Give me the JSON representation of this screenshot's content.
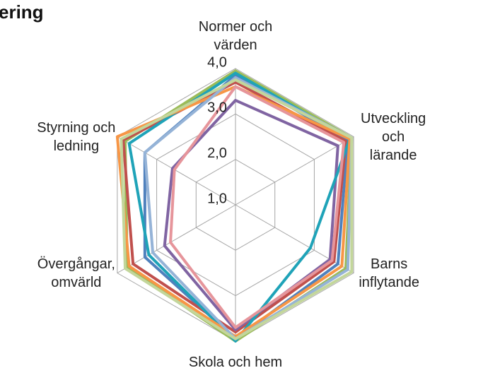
{
  "chart_data": {
    "type": "radar",
    "title": "ering",
    "categories": [
      "Normer och\nvärden",
      "Utveckling och\nlärande",
      "Barns\ninflytande",
      "Skola och hem",
      "Övergångar,\nomvärld",
      "Styrning och\nledning"
    ],
    "ylim": [
      1,
      4
    ],
    "yticks": [
      {
        "value": 1,
        "label": "1,0"
      },
      {
        "value": 2,
        "label": "2,0"
      },
      {
        "value": 3,
        "label": "3,0"
      },
      {
        "value": 4,
        "label": "4,0"
      }
    ],
    "grid": true,
    "series": [
      {
        "color": "#9bbb59",
        "values": [
          3.95,
          3.95,
          3.8,
          4.0,
          3.75,
          3.8
        ]
      },
      {
        "color": "#4f81bd",
        "values": [
          3.85,
          3.85,
          3.6,
          3.95,
          3.3,
          3.3
        ]
      },
      {
        "color": "#c0504d",
        "values": [
          3.7,
          3.8,
          3.5,
          3.8,
          3.6,
          3.85
        ]
      },
      {
        "color": "#8064a2",
        "values": [
          3.3,
          3.6,
          3.4,
          3.75,
          2.8,
          2.6
        ]
      },
      {
        "color": "#1fa3b8",
        "values": [
          3.9,
          3.9,
          2.9,
          4.0,
          3.2,
          3.7
        ]
      },
      {
        "color": "#f79646",
        "values": [
          3.6,
          3.9,
          3.7,
          3.9,
          3.7,
          4.0
        ]
      },
      {
        "color": "#95b3d7",
        "values": [
          3.8,
          3.95,
          3.85,
          3.95,
          3.1,
          3.3
        ]
      },
      {
        "color": "#e6959b",
        "values": [
          3.6,
          3.75,
          3.45,
          3.7,
          2.65,
          2.55
        ]
      },
      {
        "color": "#c3d69b",
        "values": [
          3.75,
          3.95,
          3.95,
          3.95,
          3.8,
          3.9
        ]
      }
    ]
  }
}
